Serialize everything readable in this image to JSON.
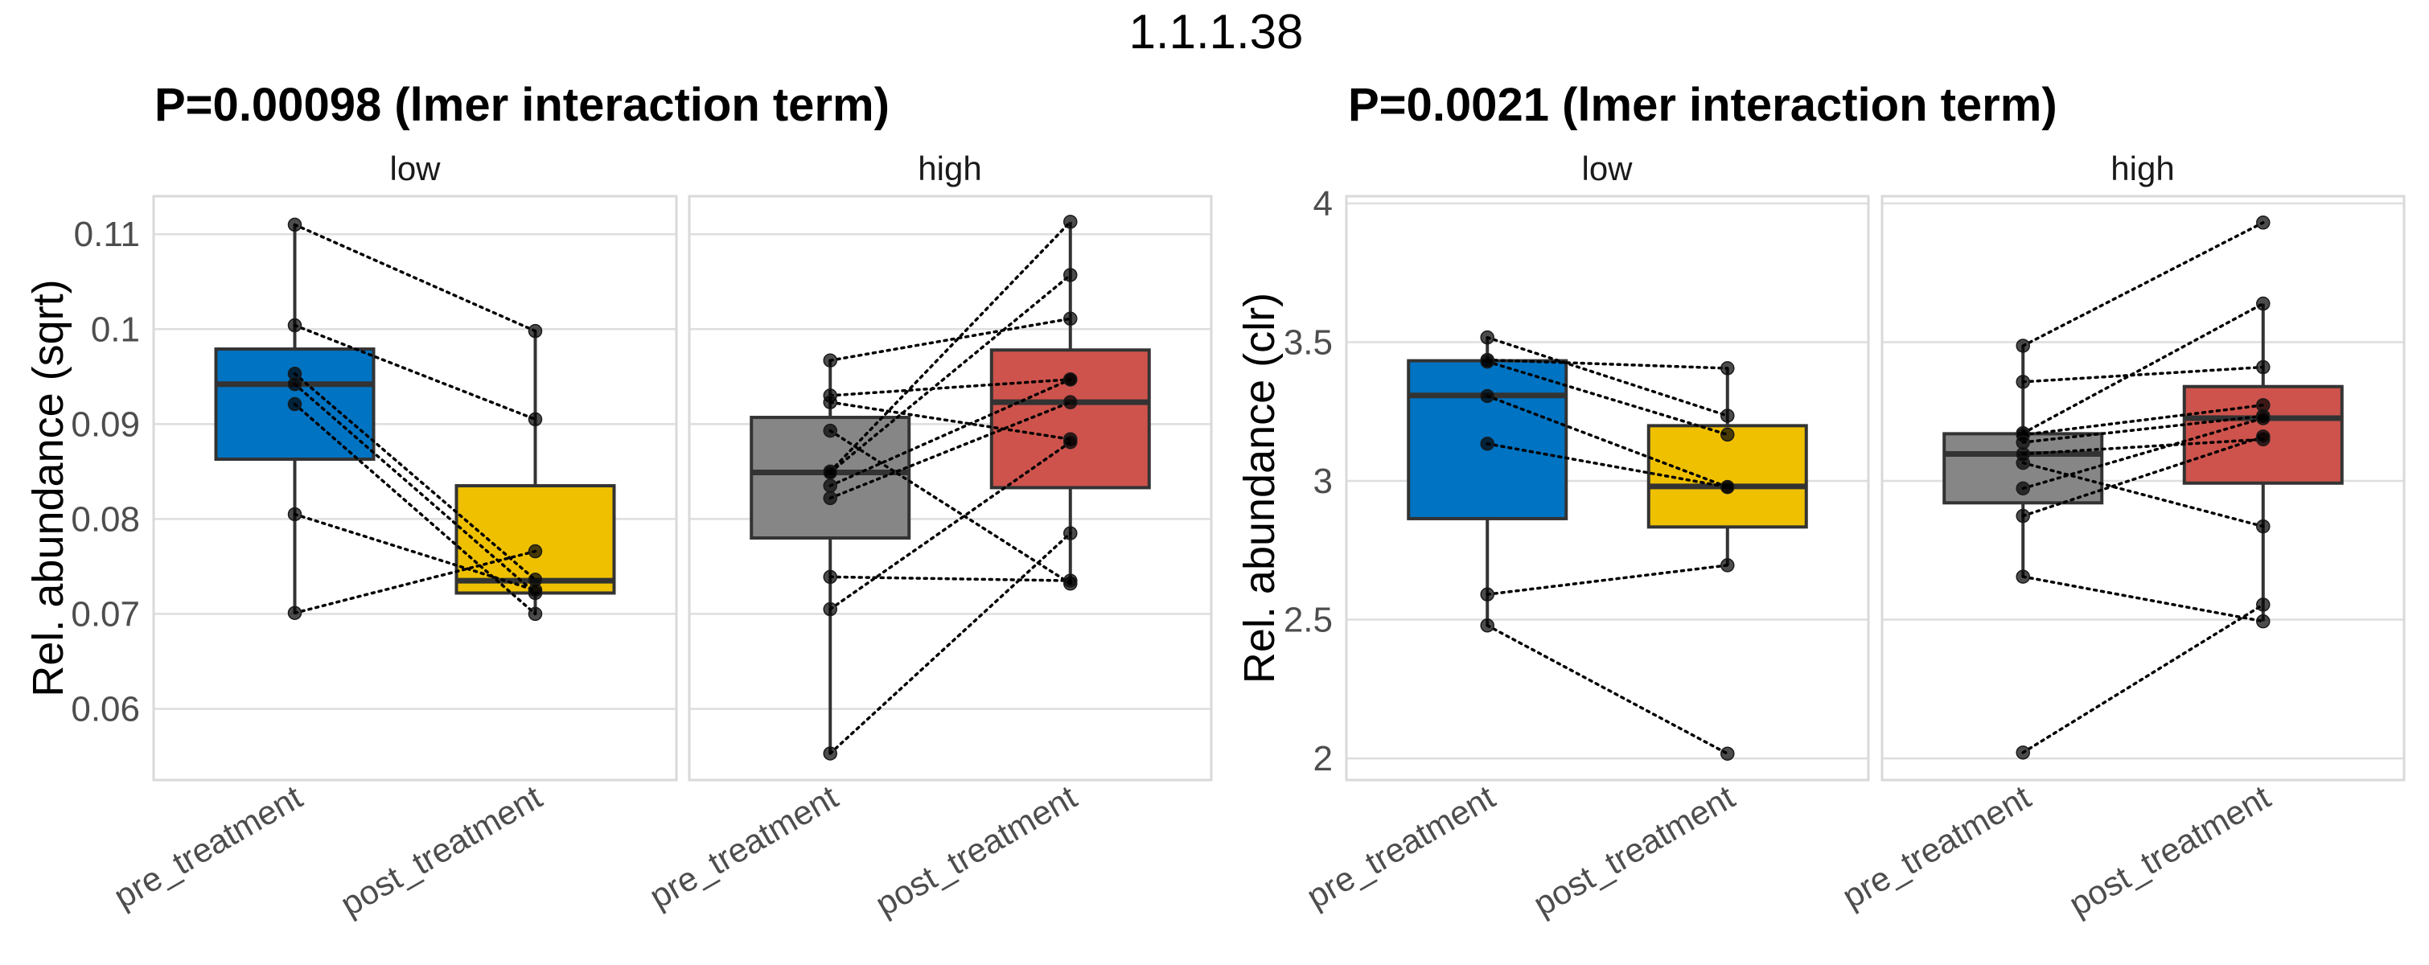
{
  "title": "1.1.1.38",
  "colors": {
    "pre_low": "#0073C2",
    "post_low": "#EFC000",
    "pre_high": "#868686",
    "post_high": "#CD534C"
  },
  "chart_data": [
    {
      "type": "boxplot",
      "title": "P=0.00098 (lmer interaction term)",
      "ylabel": "Rel. abundance (sqrt)",
      "xlabel": "",
      "ylim": [
        0.0525,
        0.114
      ],
      "yticks": [
        0.06,
        0.07,
        0.08,
        0.09,
        0.1,
        0.11
      ],
      "ytick_labels": [
        "0.06",
        "0.07",
        "0.08",
        "0.09",
        "0.1",
        "0.11"
      ],
      "grid": true,
      "categories": [
        "pre_treatment",
        "post_treatment"
      ],
      "facets": [
        {
          "label": "low",
          "boxes": [
            {
              "category": "pre_treatment",
              "color_key": "pre_low",
              "q1": 0.0863,
              "median": 0.0942,
              "q3": 0.0979,
              "whisker_low": 0.0701,
              "whisker_high": 0.111
            },
            {
              "category": "post_treatment",
              "color_key": "post_low",
              "q1": 0.0722,
              "median": 0.0735,
              "q3": 0.0835,
              "whisker_low": 0.07,
              "whisker_high": 0.0998
            }
          ],
          "pairs": [
            [
              0.111,
              0.0998
            ],
            [
              0.1004,
              0.0905
            ],
            [
              0.0953,
              0.0736
            ],
            [
              0.0942,
              0.0722
            ],
            [
              0.0921,
              0.07
            ],
            [
              0.0805,
              0.0725
            ],
            [
              0.0701,
              0.0766
            ]
          ]
        },
        {
          "label": "high",
          "boxes": [
            {
              "category": "pre_treatment",
              "color_key": "pre_high",
              "q1": 0.078,
              "median": 0.0849,
              "q3": 0.0907,
              "whisker_low": 0.0553,
              "whisker_high": 0.0967
            },
            {
              "category": "post_treatment",
              "color_key": "post_high",
              "q1": 0.0833,
              "median": 0.0923,
              "q3": 0.0978,
              "whisker_low": 0.0732,
              "whisker_high": 0.1113
            }
          ],
          "pairs": [
            [
              0.0967,
              0.1011
            ],
            [
              0.093,
              0.0947
            ],
            [
              0.0923,
              0.0884
            ],
            [
              0.0893,
              0.0732
            ],
            [
              0.085,
              0.1113
            ],
            [
              0.0849,
              0.1057
            ],
            [
              0.0835,
              0.0947
            ],
            [
              0.0822,
              0.0923
            ],
            [
              0.0739,
              0.0735
            ],
            [
              0.0705,
              0.0881
            ],
            [
              0.0553,
              0.0785
            ]
          ]
        }
      ]
    },
    {
      "type": "boxplot",
      "title": "P=0.0021 (lmer interaction term)",
      "ylabel": "Rel. abundance (clr)",
      "xlabel": "",
      "ylim": [
        1.922,
        4.026
      ],
      "yticks": [
        2,
        2.5,
        3,
        3.5,
        4
      ],
      "ytick_labels": [
        "2",
        "2.5",
        "3",
        "3.5",
        "4"
      ],
      "grid": true,
      "categories": [
        "pre_treatment",
        "post_treatment"
      ],
      "facets": [
        {
          "label": "low",
          "boxes": [
            {
              "category": "pre_treatment",
              "color_key": "pre_low",
              "q1": 2.864,
              "median": 3.308,
              "q3": 3.433,
              "whisker_low": 2.479,
              "whisker_high": 3.517
            },
            {
              "category": "post_treatment",
              "color_key": "post_low",
              "q1": 2.834,
              "median": 2.98,
              "q3": 3.199,
              "whisker_low": 2.696,
              "whisker_high": 3.406
            }
          ],
          "pairs": [
            [
              3.517,
              3.235
            ],
            [
              3.436,
              3.406
            ],
            [
              3.43,
              3.167
            ],
            [
              3.306,
              2.978
            ],
            [
              3.134,
              2.978
            ],
            [
              2.591,
              2.696
            ],
            [
              2.479,
              2.017
            ]
          ]
        },
        {
          "label": "high",
          "boxes": [
            {
              "category": "pre_treatment",
              "color_key": "pre_high",
              "q1": 2.921,
              "median": 3.097,
              "q3": 3.17,
              "whisker_low": 2.655,
              "whisker_high": 3.487
            },
            {
              "category": "post_treatment",
              "color_key": "post_high",
              "q1": 2.992,
              "median": 3.226,
              "q3": 3.34,
              "whisker_low": 2.494,
              "whisker_high": 3.639
            }
          ],
          "pairs": [
            [
              3.487,
              3.931
            ],
            [
              3.357,
              3.41
            ],
            [
              3.172,
              3.639
            ],
            [
              3.166,
              3.273
            ],
            [
              3.139,
              3.234
            ],
            [
              3.097,
              3.15
            ],
            [
              3.065,
              2.836
            ],
            [
              2.973,
              3.226
            ],
            [
              2.874,
              3.16
            ],
            [
              2.655,
              2.494
            ],
            [
              2.021,
              2.554
            ]
          ]
        }
      ]
    }
  ]
}
